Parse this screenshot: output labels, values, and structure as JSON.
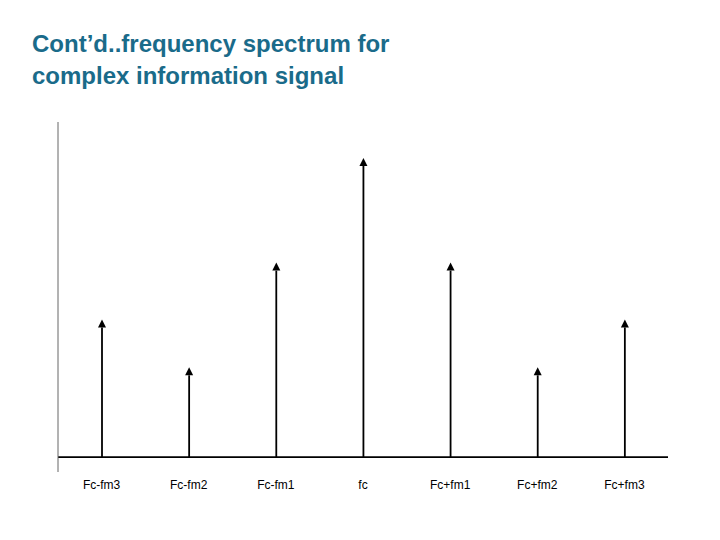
{
  "chart_data": {
    "type": "bar",
    "title": "Cont’d..frequency spectrum for\ncomplex information signal",
    "categories": [
      "Fc-fm3",
      "Fc-fm2",
      "Fc-fm1",
      "fc",
      "Fc+fm1",
      "Fc+fm2",
      "Fc+fm3"
    ],
    "values": [
      0.46,
      0.3,
      0.65,
      1.0,
      0.65,
      0.3,
      0.46
    ],
    "color": "#000000",
    "ylim": [
      -0.05,
      1.12
    ],
    "tick_labels": "x",
    "grid": false
  }
}
